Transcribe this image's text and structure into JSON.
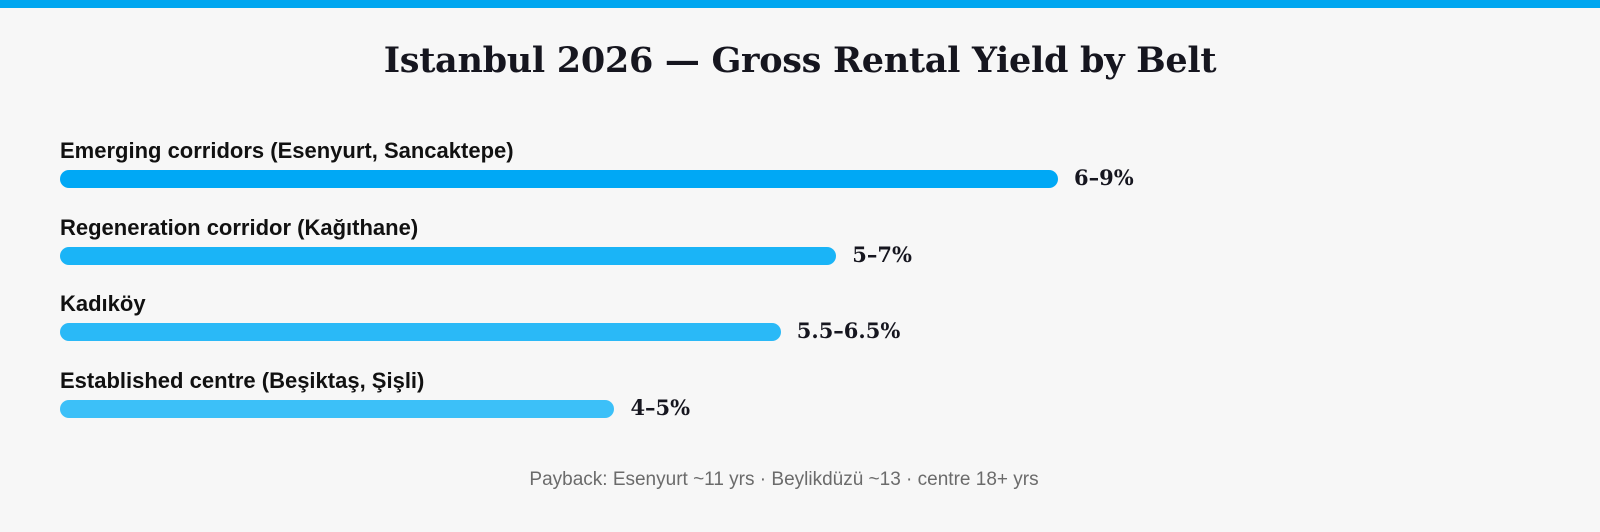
{
  "chart_data": {
    "type": "bar",
    "orientation": "horizontal",
    "title": "Istanbul 2026 — Gross Rental Yield by Belt",
    "categories": [
      "Emerging corridors (Esenyurt, Sancaktepe)",
      "Regeneration corridor (Kağıthane)",
      "Kadıköy",
      "Established centre (Beşiktaş, Şişli)"
    ],
    "ranges": [
      [
        6,
        9
      ],
      [
        5,
        7
      ],
      [
        5.5,
        6.5
      ],
      [
        4,
        5
      ]
    ],
    "values": [
      9,
      7,
      6.5,
      5
    ],
    "value_labels": [
      "6–9%",
      "5–7%",
      "5.5–6.5%",
      "4–5%"
    ],
    "bar_colors": [
      "#00a8f5",
      "#1ab4f7",
      "#2ab9f7",
      "#3cc0f8"
    ],
    "xlabel": "",
    "ylabel": "",
    "unit": "%",
    "grid": false,
    "legend": "none"
  },
  "footnote": "Payback: Esenyurt ~11 yrs · Beylikdüzü ~13 · centre 18+ yrs",
  "colors": {
    "accent_stripe": "#00a6f0",
    "background": "#f7f7f7"
  }
}
